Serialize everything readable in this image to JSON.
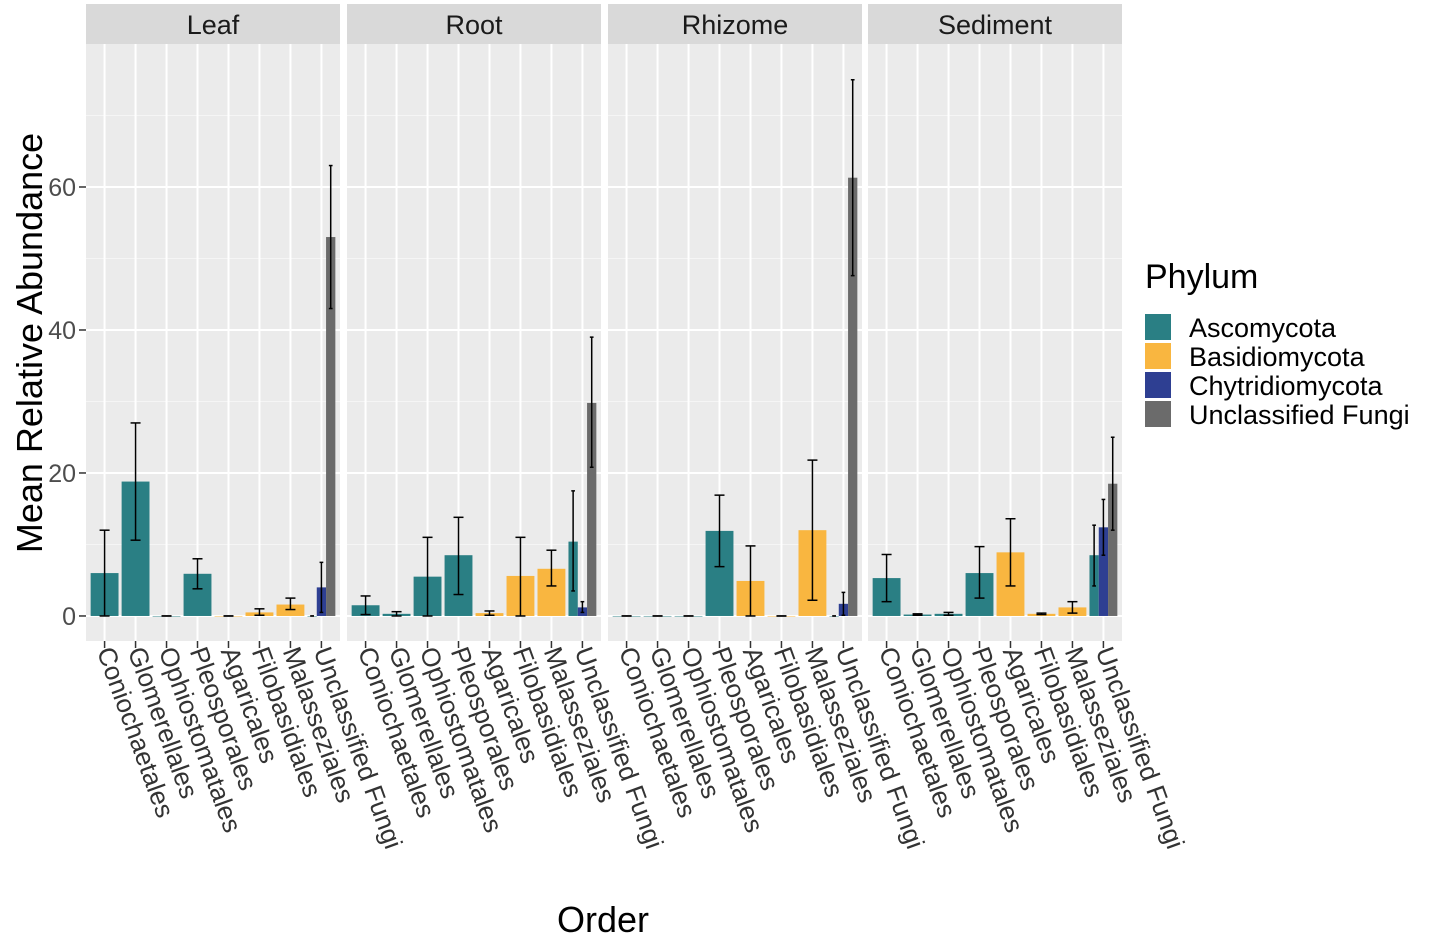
{
  "chart_data": {
    "type": "bar",
    "xlabel": "Order",
    "ylabel": "Mean Relative Abundance",
    "ylim": [
      -3.5,
      80
    ],
    "yticks": [
      0,
      20,
      40,
      60
    ],
    "grid": true,
    "legend": {
      "title": "Phylum",
      "position": "right",
      "entries": [
        {
          "name": "Ascomycota",
          "color": "#2a7f84"
        },
        {
          "name": "Basidiomycota",
          "color": "#f9b640"
        },
        {
          "name": "Chytridiomycota",
          "color": "#2e3f92"
        },
        {
          "name": "Unclassified Fungi",
          "color": "#6b6b6b"
        }
      ]
    },
    "categories": [
      "Coniochaetales",
      "Glomerellales",
      "Ophiostomatales",
      "Pleosporales",
      "Agaricales",
      "Filobasidiales",
      "Malasseziales",
      "Unclassified Fungi"
    ],
    "phylum_of_category": [
      "Ascomycota",
      "Ascomycota",
      "Ascomycota",
      "Ascomycota",
      "Basidiomycota",
      "Basidiomycota",
      "Basidiomycota",
      "Unclassified Fungi"
    ],
    "panels": [
      {
        "name": "Leaf",
        "bars": [
          {
            "order": "Coniochaetales",
            "phylum": "Ascomycota",
            "value": 6.0,
            "err": [
              0,
              12.0
            ]
          },
          {
            "order": "Glomerellales",
            "phylum": "Ascomycota",
            "value": 18.8,
            "err": [
              10.6,
              27.0
            ]
          },
          {
            "order": "Ophiostomatales",
            "phylum": "Ascomycota",
            "value": 0.0,
            "err": [
              0,
              0
            ]
          },
          {
            "order": "Pleosporales",
            "phylum": "Ascomycota",
            "value": 5.9,
            "err": [
              3.8,
              8.0
            ]
          },
          {
            "order": "Agaricales",
            "phylum": "Basidiomycota",
            "value": 0.0,
            "err": [
              0,
              0
            ]
          },
          {
            "order": "Filobasidiales",
            "phylum": "Basidiomycota",
            "value": 0.5,
            "err": [
              0.1,
              1.0
            ]
          },
          {
            "order": "Malasseziales",
            "phylum": "Basidiomycota",
            "value": 1.6,
            "err": [
              0.9,
              2.5
            ]
          },
          {
            "order": "Unclassified Fungi",
            "phylum": "Ascomycota",
            "value": 0.0,
            "err": [
              0,
              0
            ]
          },
          {
            "order": "Unclassified Fungi",
            "phylum": "Chytridiomycota",
            "value": 4.0,
            "err": [
              0.5,
              7.5
            ]
          },
          {
            "order": "Unclassified Fungi",
            "phylum": "Unclassified Fungi",
            "value": 53.0,
            "err": [
              43.0,
              63.0
            ]
          }
        ]
      },
      {
        "name": "Root",
        "bars": [
          {
            "order": "Coniochaetales",
            "phylum": "Ascomycota",
            "value": 1.5,
            "err": [
              0.2,
              2.8
            ]
          },
          {
            "order": "Glomerellales",
            "phylum": "Ascomycota",
            "value": 0.3,
            "err": [
              0.0,
              0.6
            ]
          },
          {
            "order": "Ophiostomatales",
            "phylum": "Ascomycota",
            "value": 5.5,
            "err": [
              0.0,
              11.0
            ]
          },
          {
            "order": "Pleosporales",
            "phylum": "Ascomycota",
            "value": 8.5,
            "err": [
              3.0,
              13.8
            ]
          },
          {
            "order": "Agaricales",
            "phylum": "Basidiomycota",
            "value": 0.4,
            "err": [
              0.1,
              0.7
            ]
          },
          {
            "order": "Filobasidiales",
            "phylum": "Basidiomycota",
            "value": 5.6,
            "err": [
              0.0,
              11.0
            ]
          },
          {
            "order": "Malasseziales",
            "phylum": "Basidiomycota",
            "value": 6.6,
            "err": [
              4.2,
              9.2
            ]
          },
          {
            "order": "Unclassified Fungi",
            "phylum": "Ascomycota",
            "value": 10.4,
            "err": [
              3.5,
              17.5
            ]
          },
          {
            "order": "Unclassified Fungi",
            "phylum": "Chytridiomycota",
            "value": 1.2,
            "err": [
              0.5,
              2.0
            ]
          },
          {
            "order": "Unclassified Fungi",
            "phylum": "Unclassified Fungi",
            "value": 29.8,
            "err": [
              20.8,
              39.0
            ]
          }
        ]
      },
      {
        "name": "Rhizome",
        "bars": [
          {
            "order": "Coniochaetales",
            "phylum": "Ascomycota",
            "value": 0.0,
            "err": [
              0,
              0
            ]
          },
          {
            "order": "Glomerellales",
            "phylum": "Ascomycota",
            "value": 0.0,
            "err": [
              0,
              0
            ]
          },
          {
            "order": "Ophiostomatales",
            "phylum": "Ascomycota",
            "value": 0.0,
            "err": [
              0,
              0
            ]
          },
          {
            "order": "Pleosporales",
            "phylum": "Ascomycota",
            "value": 11.9,
            "err": [
              6.9,
              16.9
            ]
          },
          {
            "order": "Agaricales",
            "phylum": "Basidiomycota",
            "value": 4.9,
            "err": [
              0.0,
              9.8
            ]
          },
          {
            "order": "Filobasidiales",
            "phylum": "Basidiomycota",
            "value": 0.0,
            "err": [
              0,
              0
            ]
          },
          {
            "order": "Malasseziales",
            "phylum": "Basidiomycota",
            "value": 12.0,
            "err": [
              2.2,
              21.8
            ]
          },
          {
            "order": "Unclassified Fungi",
            "phylum": "Ascomycota",
            "value": 0.0,
            "err": [
              0,
              0
            ]
          },
          {
            "order": "Unclassified Fungi",
            "phylum": "Chytridiomycota",
            "value": 1.7,
            "err": [
              0.1,
              3.3
            ]
          },
          {
            "order": "Unclassified Fungi",
            "phylum": "Unclassified Fungi",
            "value": 61.3,
            "err": [
              47.6,
              75.0
            ]
          }
        ]
      },
      {
        "name": "Sediment",
        "bars": [
          {
            "order": "Coniochaetales",
            "phylum": "Ascomycota",
            "value": 5.3,
            "err": [
              2.0,
              8.6
            ]
          },
          {
            "order": "Glomerellales",
            "phylum": "Ascomycota",
            "value": 0.2,
            "err": [
              0.1,
              0.3
            ]
          },
          {
            "order": "Ophiostomatales",
            "phylum": "Ascomycota",
            "value": 0.3,
            "err": [
              0.1,
              0.5
            ]
          },
          {
            "order": "Pleosporales",
            "phylum": "Ascomycota",
            "value": 6.0,
            "err": [
              2.5,
              9.7
            ]
          },
          {
            "order": "Agaricales",
            "phylum": "Basidiomycota",
            "value": 8.9,
            "err": [
              4.2,
              13.6
            ]
          },
          {
            "order": "Filobasidiales",
            "phylum": "Basidiomycota",
            "value": 0.3,
            "err": [
              0.2,
              0.4
            ]
          },
          {
            "order": "Malasseziales",
            "phylum": "Basidiomycota",
            "value": 1.2,
            "err": [
              0.4,
              2.0
            ]
          },
          {
            "order": "Unclassified Fungi",
            "phylum": "Ascomycota",
            "value": 8.5,
            "err": [
              4.2,
              12.7
            ]
          },
          {
            "order": "Unclassified Fungi",
            "phylum": "Chytridiomycota",
            "value": 12.4,
            "err": [
              8.5,
              16.3
            ]
          },
          {
            "order": "Unclassified Fungi",
            "phylum": "Unclassified Fungi",
            "value": 18.5,
            "err": [
              12.0,
              25.0
            ]
          }
        ]
      }
    ]
  }
}
